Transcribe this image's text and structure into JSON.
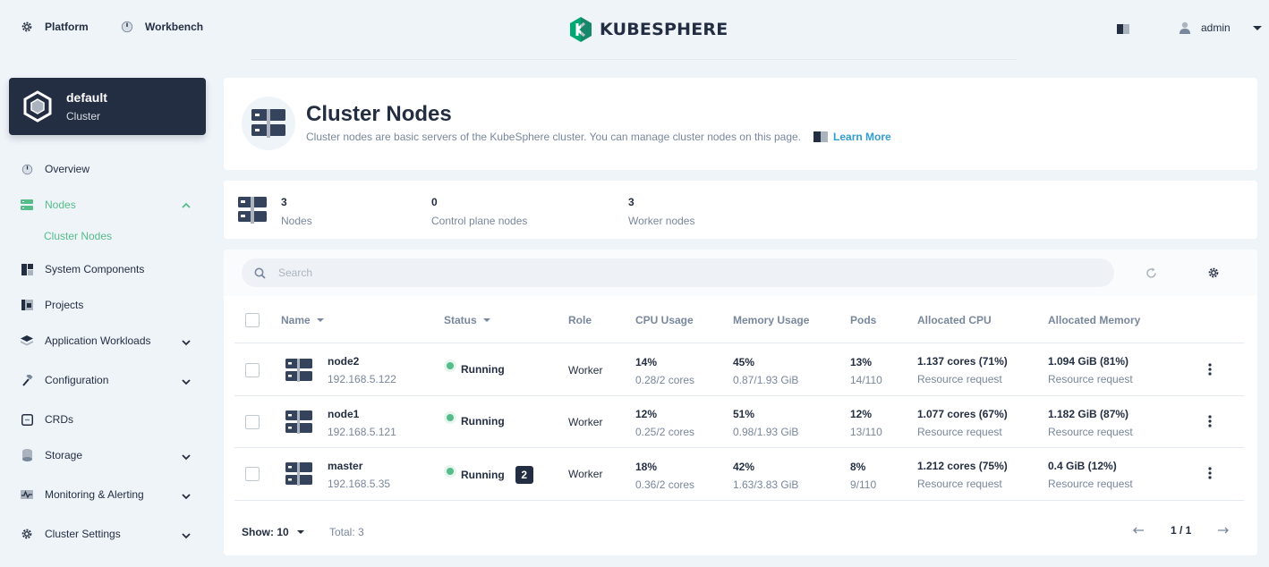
{
  "topbar": {
    "platform_label": "Platform",
    "workbench_label": "Workbench",
    "logo_text": "KUBESPHERE",
    "user_name": "admin"
  },
  "sidebar": {
    "cluster_name": "default",
    "cluster_type": "Cluster",
    "items": [
      {
        "label": "Overview",
        "icon": "dashboard-icon"
      },
      {
        "label": "Nodes",
        "icon": "nodes-icon",
        "active": true,
        "expanded": true
      },
      {
        "label": "System Components",
        "icon": "components-icon"
      },
      {
        "label": "Projects",
        "icon": "projects-icon"
      },
      {
        "label": "Application Workloads",
        "icon": "workloads-icon",
        "expandable": true
      },
      {
        "label": "Configuration",
        "icon": "hammer-icon",
        "expandable": true
      },
      {
        "label": "CRDs",
        "icon": "crd-icon"
      },
      {
        "label": "Storage",
        "icon": "database-icon",
        "expandable": true
      },
      {
        "label": "Monitoring & Alerting",
        "icon": "monitor-icon",
        "expandable": true
      },
      {
        "label": "Cluster Settings",
        "icon": "gear-icon",
        "expandable": true
      }
    ],
    "sub_item": "Cluster Nodes"
  },
  "header": {
    "title": "Cluster Nodes",
    "description": "Cluster nodes are basic servers of the KubeSphere cluster. You can manage cluster nodes on this page.",
    "learn_more": "Learn More"
  },
  "stats": [
    {
      "value": "3",
      "label": "Nodes"
    },
    {
      "value": "0",
      "label": "Control plane nodes"
    },
    {
      "value": "3",
      "label": "Worker nodes"
    }
  ],
  "search": {
    "placeholder": "Search"
  },
  "table": {
    "columns": [
      "Name",
      "Status",
      "Role",
      "CPU Usage",
      "Memory Usage",
      "Pods",
      "Allocated CPU",
      "Allocated Memory"
    ],
    "rows": [
      {
        "name": "node2",
        "ip": "192.168.5.122",
        "status": "Running",
        "badge": "",
        "role": "Worker",
        "cpu": "14%",
        "cpu_detail": "0.28/2 cores",
        "mem": "45%",
        "mem_detail": "0.87/1.93 GiB",
        "pods": "13%",
        "pods_detail": "14/110",
        "alloc_cpu": "1.137 cores (71%)",
        "alloc_cpu_sub": "Resource request",
        "alloc_mem": "1.094 GiB (81%)",
        "alloc_mem_sub": "Resource request"
      },
      {
        "name": "node1",
        "ip": "192.168.5.121",
        "status": "Running",
        "badge": "",
        "role": "Worker",
        "cpu": "12%",
        "cpu_detail": "0.25/2 cores",
        "mem": "51%",
        "mem_detail": "0.98/1.93 GiB",
        "pods": "12%",
        "pods_detail": "13/110",
        "alloc_cpu": "1.077 cores (67%)",
        "alloc_cpu_sub": "Resource request",
        "alloc_mem": "1.182 GiB (87%)",
        "alloc_mem_sub": "Resource request"
      },
      {
        "name": "master",
        "ip": "192.168.5.35",
        "status": "Running",
        "badge": "2",
        "role": "Worker",
        "cpu": "18%",
        "cpu_detail": "0.36/2 cores",
        "mem": "42%",
        "mem_detail": "1.63/3.83 GiB",
        "pods": "8%",
        "pods_detail": "9/110",
        "alloc_cpu": "1.212 cores (75%)",
        "alloc_cpu_sub": "Resource request",
        "alloc_mem": "0.4 GiB (12%)",
        "alloc_mem_sub": "Resource request"
      }
    ]
  },
  "footer": {
    "show_label": "Show: 10",
    "total_label": "Total: 3",
    "page_label": "1 / 1"
  },
  "colors": {
    "accent": "#55bc8a",
    "dark": "#242e42",
    "link": "#329dce"
  }
}
